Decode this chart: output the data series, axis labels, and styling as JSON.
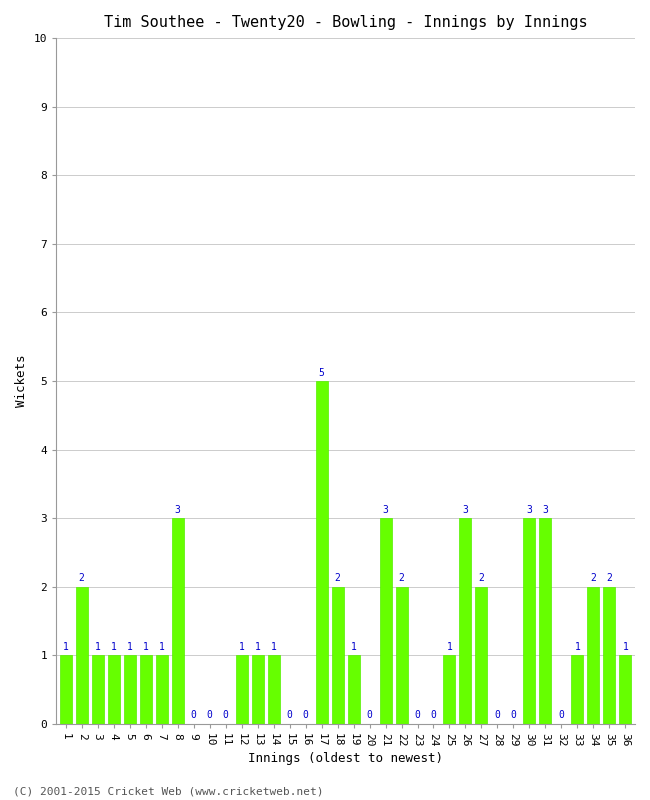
{
  "title": "Tim Southee - Twenty20 - Bowling - Innings by Innings",
  "xlabel": "Innings (oldest to newest)",
  "ylabel": "Wickets",
  "footer": "(C) 2001-2015 Cricket Web (www.cricketweb.net)",
  "ylim": [
    0,
    10
  ],
  "yticks": [
    0,
    1,
    2,
    3,
    4,
    5,
    6,
    7,
    8,
    9,
    10
  ],
  "innings": [
    1,
    2,
    3,
    4,
    5,
    6,
    7,
    8,
    9,
    10,
    11,
    12,
    13,
    14,
    15,
    16,
    17,
    18,
    19,
    20,
    21,
    22,
    23,
    24,
    25,
    26,
    27,
    28,
    29,
    30,
    31,
    32,
    33,
    34,
    35,
    36
  ],
  "wickets": [
    1,
    2,
    1,
    1,
    1,
    1,
    1,
    3,
    0,
    0,
    0,
    1,
    1,
    1,
    0,
    0,
    5,
    2,
    1,
    0,
    3,
    2,
    0,
    0,
    1,
    3,
    2,
    0,
    0,
    3,
    3,
    0,
    1,
    2,
    2,
    1
  ],
  "bar_color": "#66ff00",
  "bar_edge_color": "#55ee00",
  "bg_color": "#ffffff",
  "label_color": "#0000cc",
  "title_fontsize": 11,
  "axis_label_fontsize": 9,
  "bar_label_fontsize": 7,
  "tick_fontsize": 8,
  "footer_fontsize": 8,
  "grid_color": "#cccccc"
}
